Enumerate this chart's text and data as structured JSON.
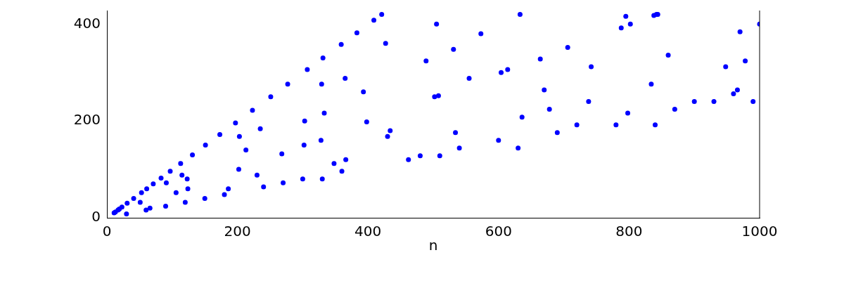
{
  "chart_data": {
    "type": "scatter",
    "xlabel": "n",
    "x": [
      11,
      13,
      17,
      19,
      23,
      30,
      31,
      41,
      51,
      53,
      60,
      61,
      66,
      71,
      83,
      90,
      91,
      97,
      106,
      113,
      115,
      120,
      123,
      124,
      131,
      150,
      151,
      173,
      180,
      186,
      197,
      202,
      203,
      213,
      223,
      230,
      235,
      240,
      251,
      268,
      270,
      277,
      300,
      302,
      303,
      307,
      328,
      329,
      330,
      331,
      333,
      348,
      359,
      360,
      365,
      366,
      383,
      393,
      398,
      409,
      421,
      427,
      430,
      434,
      462,
      480,
      489,
      502,
      505,
      508,
      510,
      531,
      534,
      540,
      555,
      573,
      600,
      604,
      614,
      630,
      633,
      636,
      664,
      670,
      678,
      690,
      706,
      720,
      738,
      742,
      780,
      788,
      795,
      798,
      802,
      834,
      838,
      840,
      842,
      844,
      860,
      870,
      900,
      930,
      948,
      960,
      966,
      970,
      978,
      990,
      1000
    ],
    "series": [
      {
        "color": "#0000ff",
        "values": [
          10,
          12,
          16,
          18,
          22,
          8,
          30,
          40,
          32,
          52,
          16,
          60,
          20,
          70,
          82,
          24,
          72,
          96,
          52,
          112,
          88,
          32,
          80,
          60,
          130,
          40,
          150,
          172,
          48,
          60,
          196,
          100,
          168,
          140,
          222,
          88,
          184,
          64,
          250,
          132,
          72,
          276,
          80,
          150,
          200,
          306,
          160,
          276,
          80,
          330,
          216,
          112,
          358,
          96,
          288,
          120,
          382,
          260,
          198,
          408,
          420,
          360,
          168,
          180,
          120,
          128,
          324,
          250,
          400,
          252,
          128,
          348,
          176,
          144,
          288,
          380,
          160,
          300,
          306,
          144,
          420,
          208,
          328,
          264,
          224,
          176,
          352,
          192,
          240,
          312,
          192,
          392,
          416,
          216,
          400,
          276,
          418,
          192,
          420,
          420,
          336,
          224,
          240,
          240,
          312,
          256,
          264,
          384,
          324,
          240,
          400
        ]
      }
    ],
    "xlim": [
      0,
      1000
    ],
    "xticks": [
      0,
      200,
      400,
      600,
      800,
      1000
    ],
    "ylim": [
      0,
      428
    ],
    "yticks": [
      0,
      200,
      400
    ],
    "grid": false,
    "legend": false,
    "marker": "circle"
  }
}
